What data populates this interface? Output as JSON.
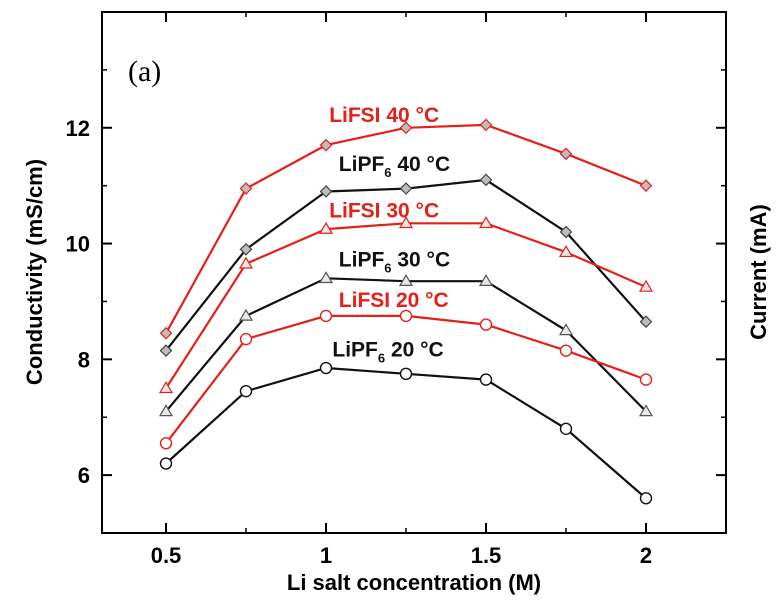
{
  "chart_data": {
    "type": "line",
    "panel_label": "(a)",
    "xlabel": "Li salt concentration (M)",
    "ylabel": "Conductivity (mS/cm)",
    "y2label": "Current (mA)",
    "xlim": [
      0.3,
      2.25
    ],
    "ylim": [
      5,
      14
    ],
    "xticks": [
      0.5,
      1,
      1.5,
      2
    ],
    "xtick_labels": [
      "0.5",
      "1",
      "1.5",
      "2"
    ],
    "yticks": [
      6,
      8,
      10,
      12
    ],
    "ytick_labels": [
      "6",
      "8",
      "10",
      "12"
    ],
    "grid": false,
    "legend": "inline labels",
    "x": [
      0.5,
      0.75,
      1.0,
      1.25,
      1.5,
      1.75,
      2.0
    ],
    "series": [
      {
        "name": "LiFSI 40 °C",
        "label_main": "LiFSI 40 °C",
        "label_sub": "",
        "label_tail": "",
        "color": "#e32119",
        "marker": "diamond",
        "label_pos": [
          1.01,
          12.1
        ],
        "values": [
          8.45,
          10.95,
          11.7,
          12.0,
          12.05,
          11.55,
          11.0
        ]
      },
      {
        "name": "LiPF6 40 °C",
        "label_main": "LiPF",
        "label_sub": "6",
        "label_tail": " 40 °C",
        "color": "#111111",
        "marker": "diamond",
        "label_pos": [
          1.04,
          11.25
        ],
        "values": [
          8.15,
          9.9,
          10.9,
          10.95,
          11.1,
          10.2,
          8.65
        ]
      },
      {
        "name": "LiFSI 30 °C",
        "label_main": "LiFSI 30 °C",
        "label_sub": "",
        "label_tail": "",
        "color": "#e32119",
        "marker": "triangle",
        "label_pos": [
          1.01,
          10.45
        ],
        "values": [
          7.5,
          9.65,
          10.25,
          10.35,
          10.35,
          9.85,
          9.25
        ]
      },
      {
        "name": "LiPF6 30 °C",
        "label_main": "LiPF",
        "label_sub": "6",
        "label_tail": " 30 °C",
        "color": "#111111",
        "marker": "triangle",
        "label_pos": [
          1.04,
          9.6
        ],
        "values": [
          7.1,
          8.75,
          9.4,
          9.35,
          9.35,
          8.5,
          7.1
        ]
      },
      {
        "name": "LiFSI 20 °C",
        "label_main": "LiFSI 20 °C",
        "label_sub": "",
        "label_tail": "",
        "color": "#e32119",
        "marker": "circle",
        "label_pos": [
          1.04,
          8.9
        ],
        "values": [
          6.55,
          8.35,
          8.75,
          8.75,
          8.6,
          8.15,
          7.65
        ]
      },
      {
        "name": "LiPF6 20 °C",
        "label_main": "LiPF",
        "label_sub": "6",
        "label_tail": " 20 °C",
        "color": "#111111",
        "marker": "circle",
        "label_pos": [
          1.02,
          8.05
        ],
        "values": [
          6.2,
          7.45,
          7.85,
          7.75,
          7.65,
          6.8,
          5.6
        ]
      }
    ]
  }
}
